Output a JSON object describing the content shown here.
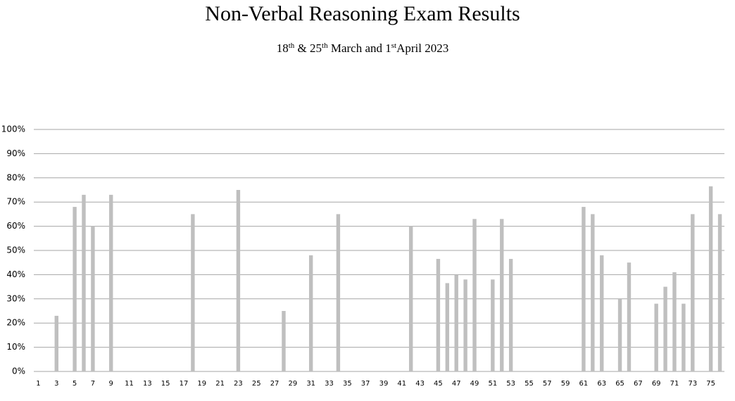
{
  "chart_data": {
    "type": "bar",
    "title": "Non-Verbal Reasoning Exam Results",
    "subtitle": [
      "18",
      "th",
      " & 25",
      "th",
      " March and 1",
      "st",
      "April 2023"
    ],
    "categories": [
      "1",
      null,
      "3",
      null,
      "5",
      null,
      "7",
      null,
      "9",
      null,
      "11",
      null,
      "13",
      null,
      "15",
      null,
      "17",
      null,
      "19",
      null,
      "21",
      null,
      "23",
      null,
      "25",
      null,
      "27",
      null,
      "29",
      null,
      "31",
      null,
      "33",
      null,
      "35",
      null,
      "37",
      null,
      "39",
      null,
      "41",
      null,
      "43",
      null,
      "45",
      null,
      "47",
      null,
      "49",
      null,
      "51",
      null,
      "53",
      null,
      "55",
      null,
      "57",
      null,
      "59",
      null,
      "61",
      null,
      "63",
      null,
      "65",
      null,
      "67",
      null,
      "69",
      null,
      "71",
      null,
      "73",
      null,
      "75",
      null
    ],
    "values": [
      0,
      0,
      23,
      0,
      68,
      73,
      60,
      0,
      73,
      0,
      0,
      0,
      0,
      0,
      0,
      0,
      0,
      65,
      0,
      0,
      0,
      0,
      75,
      0,
      0,
      0,
      0,
      25,
      0,
      0,
      48,
      0,
      0,
      65,
      0,
      0,
      0,
      0,
      0,
      0,
      0,
      60,
      0,
      0,
      46.5,
      36.5,
      40,
      38,
      63,
      0,
      38,
      63,
      46.5,
      0,
      0,
      0,
      0,
      0,
      0,
      0,
      68,
      65,
      48,
      0,
      30,
      45,
      0,
      0,
      28,
      35,
      41,
      28,
      65,
      0,
      76.5,
      65
    ],
    "color": "#bfbfbf",
    "ylim": [
      0,
      100
    ],
    "yticks": [
      {
        "value": 0,
        "label": "0%"
      },
      {
        "value": 10,
        "label": "10%"
      },
      {
        "value": 20,
        "label": "20%"
      },
      {
        "value": 30,
        "label": "30%"
      },
      {
        "value": 40,
        "label": "40%"
      },
      {
        "value": 50,
        "label": "50%"
      },
      {
        "value": 60,
        "label": "60%"
      },
      {
        "value": 70,
        "label": "70%"
      },
      {
        "value": 80,
        "label": "80%"
      },
      {
        "value": 90,
        "label": "90%"
      },
      {
        "value": 100,
        "label": "100%"
      }
    ],
    "grid": true
  }
}
